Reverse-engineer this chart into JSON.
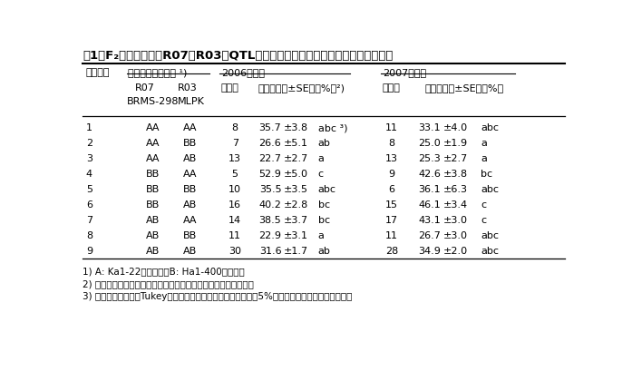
{
  "title": "表1．F₂個体におけるR07とR03のQTL近傍マーカーの遺伝子型と結実莢率の関係",
  "rows": [
    [
      "1",
      "AA",
      "AA",
      "8",
      "35.7",
      "±3.8",
      "abc ³)",
      "11",
      "33.1",
      "±4.0",
      "abc"
    ],
    [
      "2",
      "AA",
      "BB",
      "7",
      "26.6",
      "±5.1",
      "ab",
      "8",
      "25.0",
      "±1.9",
      "a"
    ],
    [
      "3",
      "AA",
      "AB",
      "13",
      "22.7",
      "±2.7",
      "a",
      "13",
      "25.3",
      "±2.7",
      "a"
    ],
    [
      "4",
      "BB",
      "AA",
      "5",
      "52.9",
      "±5.0",
      "c",
      "9",
      "42.6",
      "±3.8",
      "bc"
    ],
    [
      "5",
      "BB",
      "BB",
      "10",
      "35.5",
      "±3.5",
      "abc",
      "6",
      "36.1",
      "±6.3",
      "abc"
    ],
    [
      "6",
      "BB",
      "AB",
      "16",
      "40.2",
      "±2.8",
      "bc",
      "15",
      "46.1",
      "±3.4",
      "c"
    ],
    [
      "7",
      "AB",
      "AA",
      "14",
      "38.5",
      "±3.7",
      "bc",
      "17",
      "43.1",
      "±3.0",
      "c"
    ],
    [
      "8",
      "AB",
      "BB",
      "11",
      "22.9",
      "±3.1",
      "a",
      "11",
      "26.7",
      "±3.0",
      "abc"
    ],
    [
      "9",
      "AB",
      "AB",
      "30",
      "31.6",
      "±1.7",
      "ab",
      "28",
      "34.9",
      "±2.0",
      "abc"
    ]
  ],
  "footnotes": [
    "1) A: Ka1-22型アリル，B: Ha1-400型アリル",
    "2) ミツバチを用いた放任受粉を行い，結実した莢数から算出した",
    "3) アルファベットはTukeyの多重比較検定の結果，同じ文字は5%水準で有意差がないことを示す"
  ],
  "title_fs": 9.5,
  "header_fs": 8.0,
  "data_fs": 8.0,
  "foot_fs": 7.5
}
